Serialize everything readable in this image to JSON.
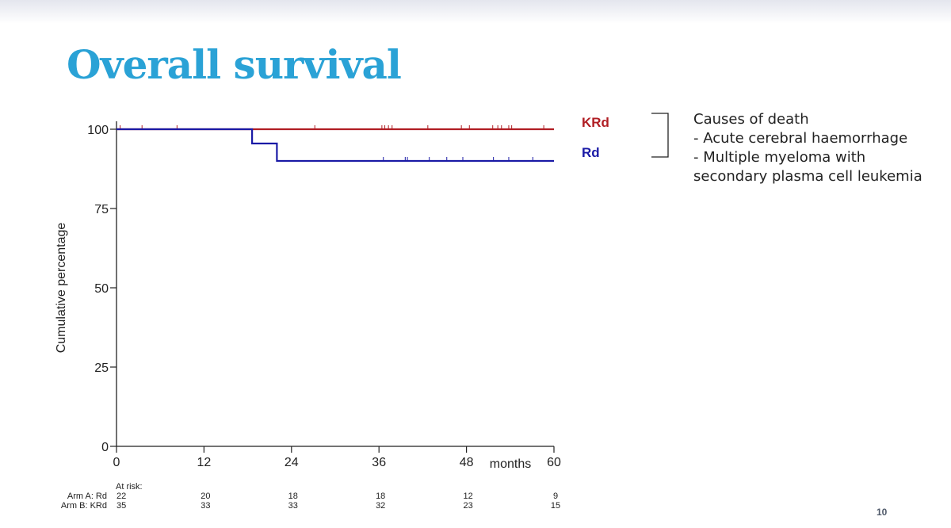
{
  "slide": {
    "title": "Overall survival",
    "page_number": "10"
  },
  "causes": {
    "heading": "Causes of death",
    "items": [
      "- Acute cerebral haemorrhage",
      "- Multiple myeloma with",
      "secondary plasma cell leukemia"
    ]
  },
  "colors": {
    "title": "#2aa2d6",
    "krd": "#b01e24",
    "rd": "#1a1aa6",
    "axis": "#222222"
  },
  "chart_data": {
    "type": "line",
    "title": "",
    "xlabel": "months",
    "ylabel": "Cumulative percentage",
    "xlim": [
      0,
      60
    ],
    "ylim": [
      0,
      100
    ],
    "x_ticks": [
      0,
      12,
      24,
      36,
      48,
      60
    ],
    "y_ticks": [
      0,
      25,
      50,
      75,
      100
    ],
    "grid": false,
    "legend_placement": "right",
    "series": [
      {
        "name": "KRd",
        "color": "#b01e24",
        "steps": [
          [
            0,
            100
          ],
          [
            60,
            100
          ]
        ],
        "censor_x": [
          0.5,
          3.5,
          8.3,
          27.2,
          36.4,
          36.8,
          37.3,
          37.8,
          42.7,
          47.3,
          48.4,
          51.6,
          52.3,
          52.8,
          53.8,
          54.2,
          58.6
        ]
      },
      {
        "name": "Rd",
        "color": "#1a1aa6",
        "steps": [
          [
            0,
            100
          ],
          [
            18.6,
            100
          ],
          [
            18.6,
            95.5
          ],
          [
            22.0,
            95.5
          ],
          [
            22.0,
            90
          ],
          [
            60,
            90
          ]
        ],
        "censor_x": [
          36.6,
          39.6,
          39.9,
          42.9,
          45.3,
          47.5,
          51.7,
          53.8,
          57.1
        ]
      }
    ],
    "at_risk": {
      "label": "At risk:",
      "times": [
        0,
        12,
        24,
        36,
        48,
        60
      ],
      "rows": [
        {
          "label": "Arm A: Rd",
          "values": [
            "22",
            "20",
            "18",
            "18",
            "12",
            "9"
          ]
        },
        {
          "label": "Arm B: KRd",
          "values": [
            "35",
            "33",
            "33",
            "32",
            "23",
            "15"
          ]
        }
      ]
    }
  }
}
